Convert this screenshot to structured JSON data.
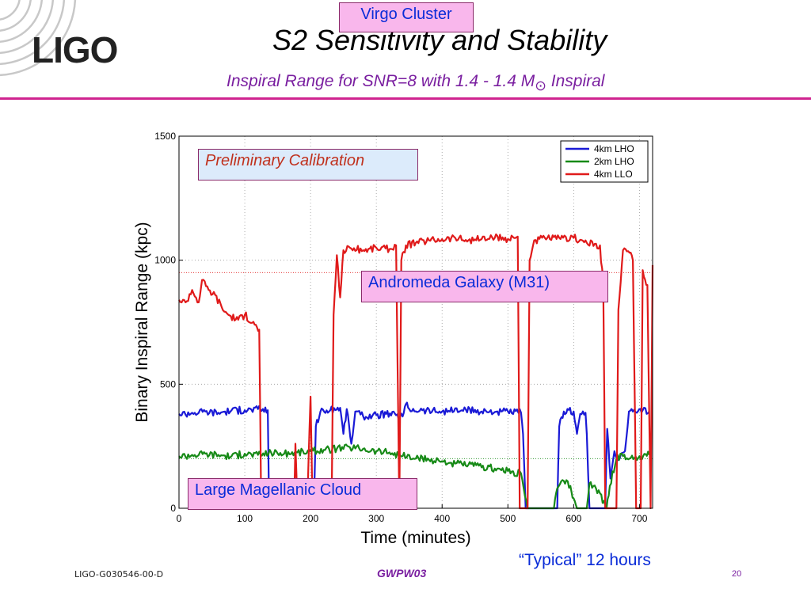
{
  "header": {
    "logo": "LIGO",
    "title": "S2 Sensitivity and Stability",
    "subtitle_main": "Inspiral Range for SNR=8  with 1.4 - 1.4 M",
    "subtitle_sub": "⊙",
    "subtitle_end": " Inspiral"
  },
  "annotations": {
    "virgo": "Virgo Cluster",
    "preliminary": "Preliminary Calibration",
    "andromeda": "Andromeda Galaxy (M31)",
    "lmc": "Large Magellanic Cloud",
    "typical": "“Typical” 12 hours"
  },
  "footer": {
    "doc_id": "LIGO-G030546-00-D",
    "event": "GWPW03",
    "page": "20"
  },
  "colors": {
    "accent": "#d02590",
    "lho4": "#1a1ad6",
    "lho2": "#178a17",
    "llo4": "#e01a1a"
  },
  "chart_data": {
    "type": "line",
    "xlabel": "Time (minutes)",
    "ylabel": "Binary Inspiral Range (kpc)",
    "xlim": [
      0,
      720
    ],
    "ylim": [
      0,
      1500
    ],
    "xticks": [
      0,
      100,
      200,
      300,
      400,
      500,
      600,
      700
    ],
    "yticks": [
      0,
      500,
      1000,
      1500
    ],
    "grid": true,
    "legend_position": "top-right",
    "reference_lines": [
      {
        "label": "Andromeda Galaxy (M31)",
        "y": 950
      },
      {
        "label": "Large Magellanic Cloud",
        "y": 200
      }
    ],
    "series": [
      {
        "name": "4km LHO",
        "color": "#1a1ad6",
        "points": [
          [
            0,
            380
          ],
          [
            20,
            385
          ],
          [
            40,
            390
          ],
          [
            60,
            385
          ],
          [
            80,
            395
          ],
          [
            100,
            395
          ],
          [
            120,
            400
          ],
          [
            135,
            395
          ],
          [
            137,
            0
          ],
          [
            205,
            0
          ],
          [
            208,
            330
          ],
          [
            215,
            390
          ],
          [
            230,
            395
          ],
          [
            245,
            405
          ],
          [
            250,
            300
          ],
          [
            255,
            400
          ],
          [
            262,
            260
          ],
          [
            268,
            390
          ],
          [
            280,
            370
          ],
          [
            300,
            375
          ],
          [
            315,
            380
          ],
          [
            330,
            375
          ],
          [
            340,
            370
          ],
          [
            345,
            420
          ],
          [
            350,
            400
          ],
          [
            370,
            395
          ],
          [
            400,
            390
          ],
          [
            430,
            395
          ],
          [
            460,
            390
          ],
          [
            490,
            390
          ],
          [
            520,
            385
          ],
          [
            523,
            300
          ],
          [
            527,
            0
          ],
          [
            575,
            0
          ],
          [
            578,
            330
          ],
          [
            585,
            390
          ],
          [
            600,
            390
          ],
          [
            605,
            300
          ],
          [
            610,
            380
          ],
          [
            618,
            385
          ],
          [
            620,
            300
          ],
          [
            624,
            0
          ],
          [
            648,
            0
          ],
          [
            651,
            320
          ],
          [
            656,
            120
          ],
          [
            662,
            230
          ],
          [
            670,
            200
          ],
          [
            678,
            230
          ],
          [
            684,
            390
          ],
          [
            690,
            390
          ],
          [
            696,
            385
          ],
          [
            705,
            395
          ],
          [
            715,
            390
          ]
        ]
      },
      {
        "name": "2km LHO",
        "color": "#178a17",
        "points": [
          [
            0,
            210
          ],
          [
            20,
            215
          ],
          [
            40,
            220
          ],
          [
            60,
            215
          ],
          [
            80,
            210
          ],
          [
            100,
            220
          ],
          [
            120,
            215
          ],
          [
            140,
            225
          ],
          [
            160,
            220
          ],
          [
            180,
            225
          ],
          [
            200,
            230
          ],
          [
            220,
            235
          ],
          [
            240,
            240
          ],
          [
            260,
            245
          ],
          [
            280,
            240
          ],
          [
            300,
            230
          ],
          [
            320,
            225
          ],
          [
            340,
            210
          ],
          [
            360,
            200
          ],
          [
            380,
            195
          ],
          [
            400,
            190
          ],
          [
            420,
            180
          ],
          [
            440,
            175
          ],
          [
            460,
            165
          ],
          [
            480,
            160
          ],
          [
            500,
            150
          ],
          [
            520,
            140
          ],
          [
            530,
            0
          ],
          [
            570,
            0
          ],
          [
            575,
            80
          ],
          [
            585,
            110
          ],
          [
            595,
            90
          ],
          [
            600,
            40
          ],
          [
            605,
            0
          ],
          [
            620,
            0
          ],
          [
            624,
            100
          ],
          [
            630,
            90
          ],
          [
            640,
            60
          ],
          [
            650,
            0
          ],
          [
            655,
            90
          ],
          [
            665,
            200
          ],
          [
            675,
            210
          ],
          [
            685,
            200
          ],
          [
            700,
            210
          ],
          [
            715,
            215
          ]
        ]
      },
      {
        "name": "4km LLO",
        "color": "#e01a1a",
        "points": [
          [
            0,
            840
          ],
          [
            10,
            830
          ],
          [
            20,
            880
          ],
          [
            30,
            830
          ],
          [
            35,
            920
          ],
          [
            45,
            880
          ],
          [
            55,
            860
          ],
          [
            65,
            810
          ],
          [
            75,
            780
          ],
          [
            90,
            760
          ],
          [
            100,
            780
          ],
          [
            115,
            740
          ],
          [
            122,
            720
          ],
          [
            125,
            0
          ],
          [
            175,
            0
          ],
          [
            177,
            260
          ],
          [
            180,
            0
          ],
          [
            195,
            0
          ],
          [
            200,
            450
          ],
          [
            203,
            0
          ],
          [
            232,
            0
          ],
          [
            235,
            780
          ],
          [
            240,
            1020
          ],
          [
            245,
            850
          ],
          [
            250,
            1040
          ],
          [
            260,
            1050
          ],
          [
            280,
            1040
          ],
          [
            300,
            1050
          ],
          [
            320,
            1045
          ],
          [
            330,
            1060
          ],
          [
            335,
            0
          ],
          [
            338,
            1000
          ],
          [
            345,
            1060
          ],
          [
            360,
            1070
          ],
          [
            380,
            1080
          ],
          [
            400,
            1085
          ],
          [
            420,
            1090
          ],
          [
            440,
            1080
          ],
          [
            460,
            1085
          ],
          [
            480,
            1090
          ],
          [
            500,
            1085
          ],
          [
            515,
            1095
          ],
          [
            518,
            0
          ],
          [
            530,
            0
          ],
          [
            533,
            1000
          ],
          [
            540,
            1080
          ],
          [
            560,
            1090
          ],
          [
            580,
            1085
          ],
          [
            600,
            1090
          ],
          [
            620,
            1070
          ],
          [
            640,
            1060
          ],
          [
            645,
            900
          ],
          [
            648,
            0
          ],
          [
            665,
            0
          ],
          [
            668,
            800
          ],
          [
            675,
            1040
          ],
          [
            685,
            1030
          ],
          [
            690,
            1000
          ],
          [
            695,
            0
          ],
          [
            702,
            0
          ],
          [
            705,
            960
          ],
          [
            712,
            900
          ],
          [
            717,
            0
          ],
          [
            720,
            980
          ]
        ]
      }
    ]
  }
}
